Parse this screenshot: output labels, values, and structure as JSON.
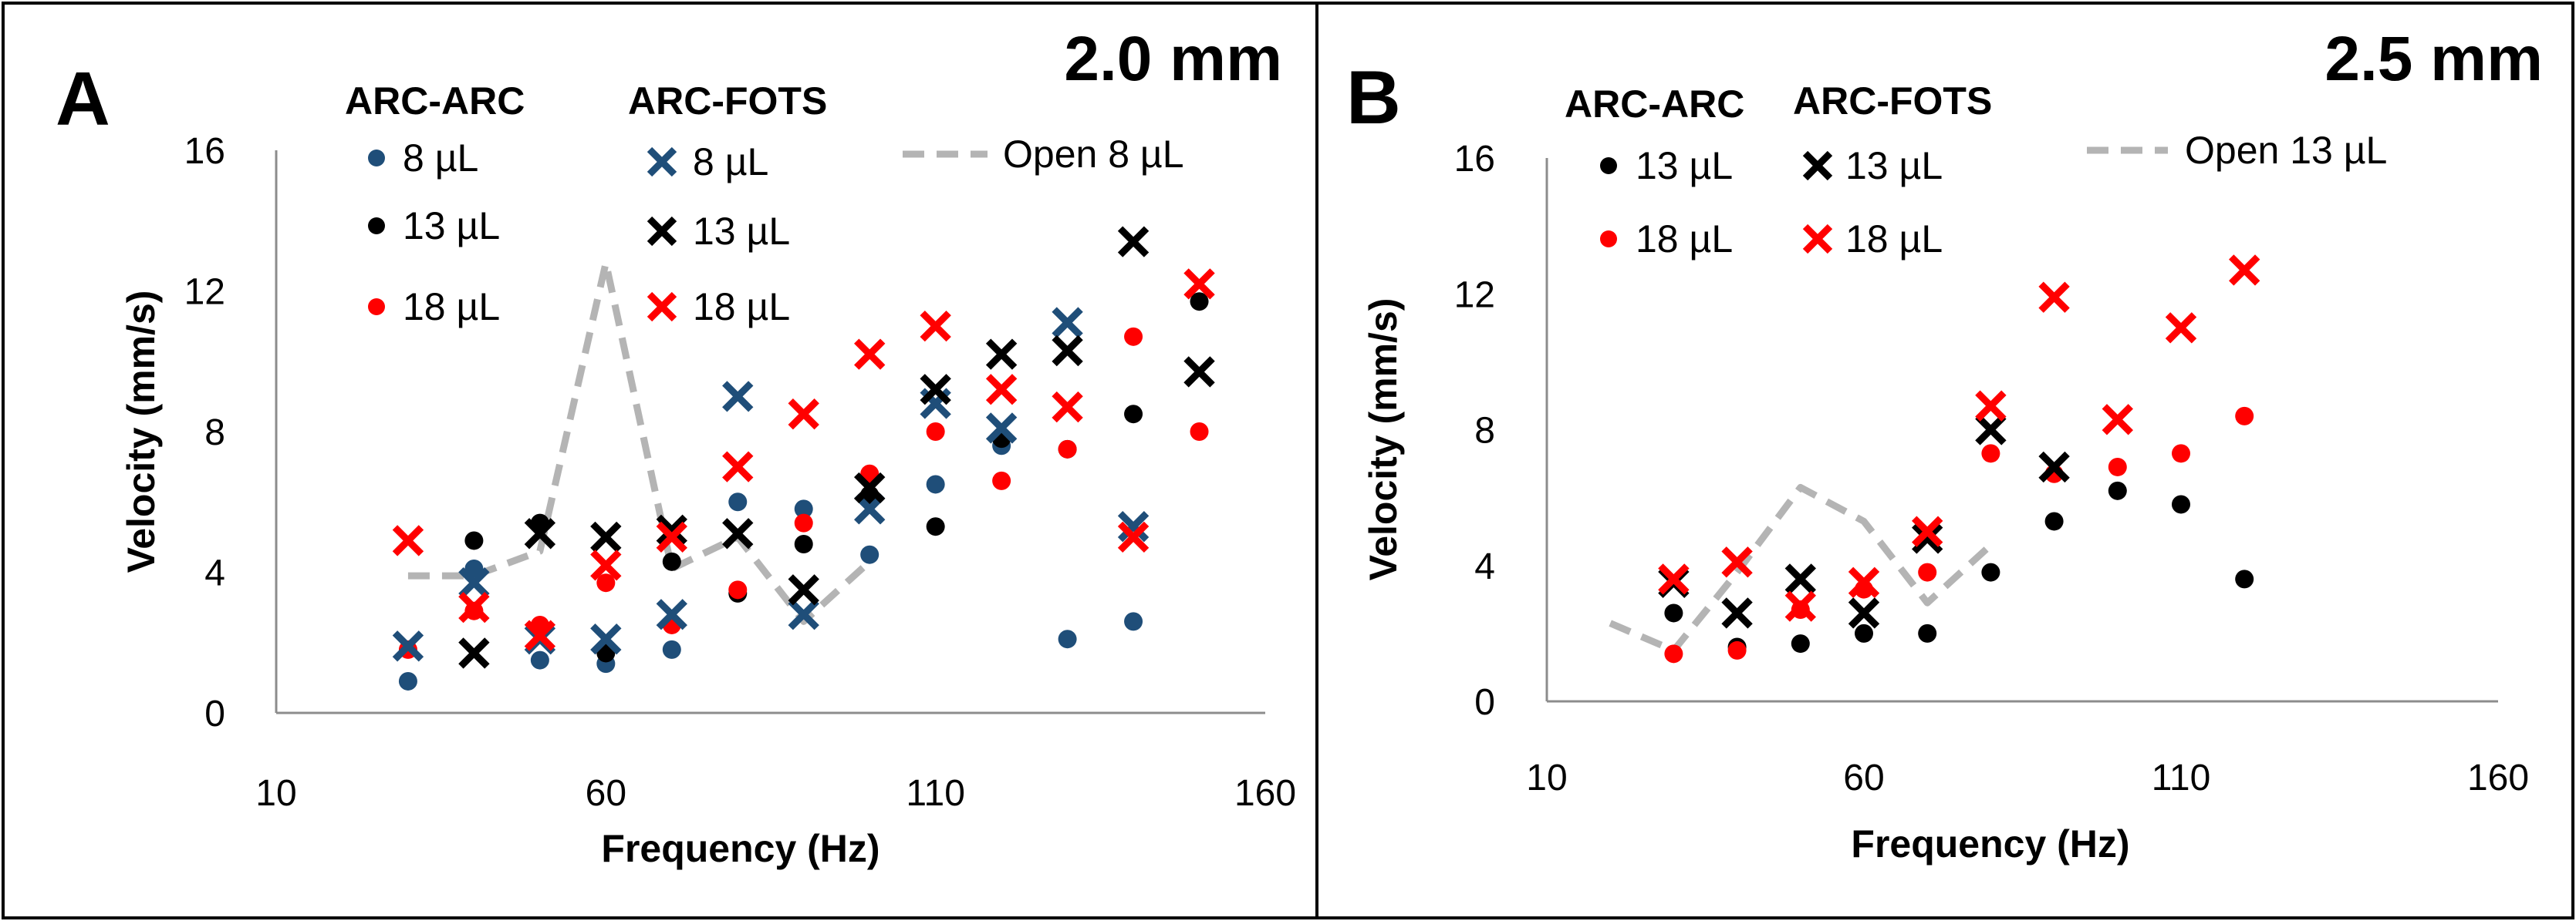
{
  "chart_data": [
    {
      "type": "scatter",
      "panel_label": "A",
      "size_label": "2.0 mm",
      "xlabel": "Frequency (Hz)",
      "ylabel": "Velocity (mm/s)",
      "xlim": [
        10,
        160
      ],
      "ylim": [
        0,
        16
      ],
      "xticks": [
        "10",
        "60",
        "110",
        "160"
      ],
      "yticks": [
        "0",
        "4",
        "8",
        "12",
        "16"
      ],
      "group_headers": [
        "ARC-ARC",
        "ARC-FOTS"
      ],
      "series": [
        {
          "name": "8 µL",
          "group": "ARC-ARC",
          "marker": "dot",
          "color": "#1f4e79",
          "x": [
            30,
            40,
            50,
            60,
            70,
            80,
            90,
            100,
            110,
            120,
            130,
            140
          ],
          "y": [
            0.9,
            4.1,
            1.5,
            1.4,
            1.8,
            6.0,
            5.8,
            4.5,
            6.5,
            7.6,
            2.1,
            2.6
          ]
        },
        {
          "name": "13 µL",
          "group": "ARC-ARC",
          "marker": "dot",
          "color": "#000000",
          "x": [
            40,
            50,
            60,
            70,
            80,
            90,
            100,
            110,
            120,
            130,
            140,
            150
          ],
          "y": [
            4.9,
            5.4,
            1.7,
            4.3,
            3.4,
            4.8,
            6.2,
            5.3,
            7.8,
            7.5,
            8.5,
            11.7
          ]
        },
        {
          "name": "18 µL",
          "group": "ARC-ARC",
          "marker": "dot",
          "color": "#ff0000",
          "x": [
            30,
            40,
            50,
            60,
            70,
            80,
            90,
            100,
            110,
            120,
            130,
            140,
            150
          ],
          "y": [
            1.8,
            2.9,
            2.5,
            3.7,
            2.5,
            3.5,
            5.4,
            6.8,
            8.0,
            6.6,
            7.5,
            10.7,
            8.0
          ]
        },
        {
          "name": "8 µL",
          "group": "ARC-FOTS",
          "marker": "x",
          "color": "#1f4e79",
          "x": [
            30,
            40,
            50,
            60,
            70,
            80,
            90,
            100,
            110,
            120,
            130,
            140
          ],
          "y": [
            1.9,
            3.7,
            2.1,
            2.1,
            2.8,
            9.0,
            2.8,
            5.8,
            8.8,
            8.1,
            11.1,
            5.3
          ]
        },
        {
          "name": "13 µL",
          "group": "ARC-FOTS",
          "marker": "x",
          "color": "#000000",
          "x": [
            40,
            50,
            60,
            70,
            80,
            90,
            100,
            110,
            120,
            130,
            140,
            150
          ],
          "y": [
            1.7,
            5.1,
            5.0,
            5.2,
            5.1,
            3.5,
            6.4,
            9.2,
            10.2,
            10.3,
            13.4,
            9.7
          ]
        },
        {
          "name": "18 µL",
          "group": "ARC-FOTS",
          "marker": "x",
          "color": "#ff0000",
          "x": [
            30,
            40,
            50,
            60,
            70,
            80,
            90,
            100,
            110,
            120,
            130,
            140,
            150
          ],
          "y": [
            4.9,
            3.0,
            2.2,
            4.2,
            5.0,
            7.0,
            8.5,
            10.2,
            11.0,
            9.2,
            8.7,
            5.0,
            12.2
          ]
        },
        {
          "name": "Open 8 µL",
          "group": "Open",
          "marker": "dashed-line",
          "color": "#b4b4b4",
          "x": [
            30,
            40,
            50,
            60,
            70,
            80,
            90,
            100
          ],
          "y": [
            3.9,
            3.9,
            4.6,
            12.8,
            4.1,
            5.0,
            2.6,
            4.3
          ]
        }
      ]
    },
    {
      "type": "scatter",
      "panel_label": "B",
      "size_label": "2.5 mm",
      "xlabel": "Frequency (Hz)",
      "ylabel": "Velocity (mm/s)",
      "xlim": [
        10,
        160
      ],
      "ylim": [
        0,
        16
      ],
      "xticks": [
        "10",
        "60",
        "110",
        "160"
      ],
      "yticks": [
        "0",
        "4",
        "8",
        "12",
        "16"
      ],
      "group_headers": [
        "ARC-ARC",
        "ARC-FOTS"
      ],
      "series": [
        {
          "name": "13 µL",
          "group": "ARC-ARC",
          "marker": "dot",
          "color": "#000000",
          "x": [
            30,
            40,
            50,
            60,
            70,
            80,
            90,
            100,
            110,
            120
          ],
          "y": [
            2.6,
            1.6,
            1.7,
            2.0,
            2.0,
            3.8,
            5.3,
            6.2,
            5.8,
            3.6
          ]
        },
        {
          "name": "18 µL",
          "group": "ARC-ARC",
          "marker": "dot",
          "color": "#ff0000",
          "x": [
            30,
            40,
            50,
            60,
            70,
            80,
            90,
            100,
            110,
            120
          ],
          "y": [
            1.4,
            1.5,
            2.7,
            3.3,
            3.8,
            7.3,
            6.7,
            6.9,
            7.3,
            8.4
          ]
        },
        {
          "name": "13 µL",
          "group": "ARC-FOTS",
          "marker": "x",
          "color": "#000000",
          "x": [
            30,
            40,
            50,
            60,
            70,
            80,
            90
          ],
          "y": [
            3.5,
            2.6,
            3.6,
            2.6,
            4.8,
            8.0,
            6.9
          ]
        },
        {
          "name": "18 µL",
          "group": "ARC-FOTS",
          "marker": "x",
          "color": "#ff0000",
          "x": [
            30,
            40,
            50,
            60,
            70,
            80,
            90,
            100,
            110,
            120
          ],
          "y": [
            3.6,
            4.1,
            2.8,
            3.5,
            5.0,
            8.7,
            11.9,
            8.3,
            11.0,
            12.7
          ]
        },
        {
          "name": "Open 13 µL",
          "group": "Open",
          "marker": "dashed-line",
          "color": "#b4b4b4",
          "x": [
            20,
            30,
            40,
            50,
            60,
            70,
            80
          ],
          "y": [
            2.3,
            1.5,
            3.8,
            6.3,
            5.3,
            2.9,
            4.6
          ]
        }
      ]
    }
  ]
}
